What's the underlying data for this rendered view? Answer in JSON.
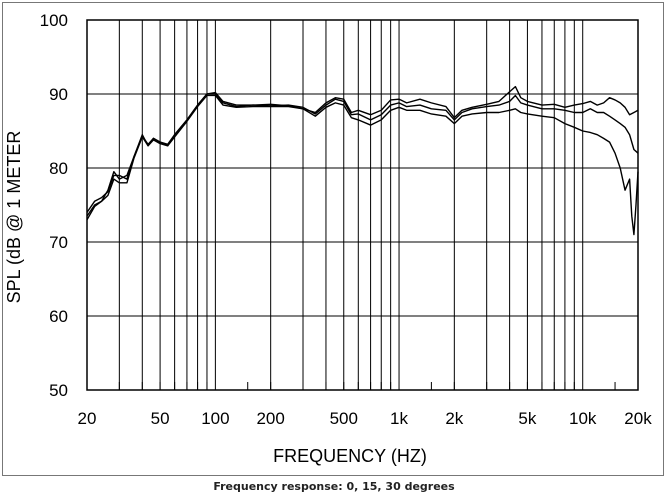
{
  "caption": "Frequency response: 0, 15, 30 degrees",
  "chart_data": {
    "type": "line",
    "title": "",
    "xlabel": "FREQUENCY  (HZ)",
    "ylabel": "SPL (dB @ 1 METER",
    "x_scale": "log",
    "xlim": [
      20,
      20000
    ],
    "ylim": [
      50,
      100
    ],
    "grid": true,
    "x_ticks": [
      {
        "value": 20,
        "label": "20"
      },
      {
        "value": 50,
        "label": "50"
      },
      {
        "value": 100,
        "label": "100"
      },
      {
        "value": 200,
        "label": "200"
      },
      {
        "value": 500,
        "label": "500"
      },
      {
        "value": 1000,
        "label": "1k"
      },
      {
        "value": 2000,
        "label": "2k"
      },
      {
        "value": 5000,
        "label": "5k"
      },
      {
        "value": 10000,
        "label": "10k"
      },
      {
        "value": 20000,
        "label": "20k"
      }
    ],
    "y_ticks": [
      {
        "value": 50,
        "label": "50"
      },
      {
        "value": 60,
        "label": "60"
      },
      {
        "value": 70,
        "label": "70"
      },
      {
        "value": 80,
        "label": "80"
      },
      {
        "value": 90,
        "label": "90"
      },
      {
        "value": 100,
        "label": "100"
      }
    ],
    "x_gridlines": [
      20,
      30,
      40,
      50,
      60,
      70,
      80,
      90,
      100,
      200,
      300,
      400,
      500,
      600,
      700,
      800,
      900,
      1000,
      2000,
      3000,
      4000,
      5000,
      6000,
      7000,
      8000,
      9000,
      10000,
      20000
    ],
    "y_gridlines": [
      50,
      60,
      70,
      80,
      90,
      100
    ],
    "series": [
      {
        "color": "#000000",
        "points": [
          [
            20,
            73.5
          ],
          [
            22,
            75
          ],
          [
            24,
            75.5
          ],
          [
            26,
            77
          ],
          [
            28,
            79.5
          ],
          [
            30,
            78.5
          ],
          [
            33,
            79
          ],
          [
            36,
            81.5
          ],
          [
            40,
            84.5
          ],
          [
            43,
            83
          ],
          [
            46,
            84
          ],
          [
            50,
            83.5
          ],
          [
            55,
            83
          ],
          [
            60,
            84.5
          ],
          [
            70,
            86.5
          ],
          [
            80,
            88.5
          ],
          [
            90,
            90
          ],
          [
            100,
            90.2
          ],
          [
            110,
            89
          ],
          [
            130,
            88.5
          ],
          [
            160,
            88.5
          ],
          [
            200,
            88.6
          ],
          [
            250,
            88.4
          ],
          [
            300,
            88
          ],
          [
            350,
            87.5
          ],
          [
            400,
            88.8
          ],
          [
            450,
            89.5
          ],
          [
            500,
            89.3
          ],
          [
            550,
            87.5
          ],
          [
            600,
            87.8
          ],
          [
            700,
            87.2
          ],
          [
            800,
            87.8
          ],
          [
            900,
            89.2
          ],
          [
            1000,
            89.3
          ],
          [
            1100,
            88.8
          ],
          [
            1300,
            89.3
          ],
          [
            1500,
            88.8
          ],
          [
            1800,
            88.3
          ],
          [
            2000,
            86.8
          ],
          [
            2200,
            87.8
          ],
          [
            2500,
            88.2
          ],
          [
            3000,
            88.6
          ],
          [
            3500,
            89
          ],
          [
            4000,
            90.3
          ],
          [
            4300,
            91
          ],
          [
            4600,
            89.5
          ],
          [
            5000,
            89
          ],
          [
            6000,
            88.5
          ],
          [
            7000,
            88.6
          ],
          [
            8000,
            88.2
          ],
          [
            9000,
            88.5
          ],
          [
            10000,
            88.7
          ],
          [
            11000,
            89
          ],
          [
            12000,
            88.5
          ],
          [
            13000,
            88.8
          ],
          [
            14000,
            89.5
          ],
          [
            15000,
            89.2
          ],
          [
            16000,
            88.8
          ],
          [
            17000,
            88.2
          ],
          [
            18000,
            87.2
          ],
          [
            19000,
            87.5
          ],
          [
            20000,
            87.8
          ]
        ]
      },
      {
        "color": "#000000",
        "points": [
          [
            20,
            74
          ],
          [
            22,
            75.5
          ],
          [
            24,
            76
          ],
          [
            26,
            76.8
          ],
          [
            28,
            79
          ],
          [
            30,
            79
          ],
          [
            33,
            78.5
          ],
          [
            36,
            81.5
          ],
          [
            40,
            84.3
          ],
          [
            43,
            83.2
          ],
          [
            46,
            84
          ],
          [
            50,
            83.5
          ],
          [
            55,
            83.2
          ],
          [
            60,
            84.5
          ],
          [
            70,
            86.5
          ],
          [
            80,
            88.5
          ],
          [
            90,
            90
          ],
          [
            100,
            90
          ],
          [
            110,
            88.8
          ],
          [
            130,
            88.3
          ],
          [
            160,
            88.5
          ],
          [
            200,
            88.4
          ],
          [
            250,
            88.5
          ],
          [
            300,
            88.2
          ],
          [
            350,
            87.3
          ],
          [
            400,
            88.5
          ],
          [
            450,
            89.3
          ],
          [
            500,
            89
          ],
          [
            550,
            87.2
          ],
          [
            600,
            87.3
          ],
          [
            700,
            86.5
          ],
          [
            800,
            87.2
          ],
          [
            900,
            88.5
          ],
          [
            1000,
            88.8
          ],
          [
            1100,
            88.3
          ],
          [
            1300,
            88.5
          ],
          [
            1500,
            88
          ],
          [
            1800,
            87.8
          ],
          [
            2000,
            86.5
          ],
          [
            2200,
            87.5
          ],
          [
            2500,
            88
          ],
          [
            3000,
            88.3
          ],
          [
            3500,
            88.5
          ],
          [
            4000,
            89
          ],
          [
            4300,
            89.8
          ],
          [
            4600,
            88.8
          ],
          [
            5000,
            88.5
          ],
          [
            6000,
            88
          ],
          [
            7000,
            88
          ],
          [
            8000,
            87.8
          ],
          [
            9000,
            87.5
          ],
          [
            10000,
            87.5
          ],
          [
            11000,
            88
          ],
          [
            12000,
            87.5
          ],
          [
            13000,
            87.5
          ],
          [
            14000,
            87
          ],
          [
            15000,
            86.5
          ],
          [
            16000,
            86
          ],
          [
            17000,
            85.5
          ],
          [
            18000,
            84.5
          ],
          [
            19000,
            82.5
          ],
          [
            20000,
            82
          ]
        ]
      },
      {
        "color": "#000000",
        "points": [
          [
            20,
            73
          ],
          [
            22,
            74.8
          ],
          [
            24,
            75.5
          ],
          [
            26,
            76.3
          ],
          [
            28,
            78.5
          ],
          [
            30,
            78
          ],
          [
            33,
            78
          ],
          [
            36,
            81.3
          ],
          [
            40,
            84.2
          ],
          [
            43,
            83
          ],
          [
            46,
            83.8
          ],
          [
            50,
            83.3
          ],
          [
            55,
            83
          ],
          [
            60,
            84.2
          ],
          [
            70,
            86.3
          ],
          [
            80,
            88.3
          ],
          [
            90,
            89.8
          ],
          [
            100,
            89.8
          ],
          [
            110,
            88.5
          ],
          [
            130,
            88.2
          ],
          [
            160,
            88.3
          ],
          [
            200,
            88.3
          ],
          [
            250,
            88.3
          ],
          [
            300,
            88
          ],
          [
            350,
            87
          ],
          [
            400,
            88.2
          ],
          [
            450,
            88.8
          ],
          [
            500,
            88.5
          ],
          [
            550,
            86.8
          ],
          [
            600,
            86.5
          ],
          [
            700,
            85.8
          ],
          [
            800,
            86.5
          ],
          [
            900,
            87.8
          ],
          [
            1000,
            88.2
          ],
          [
            1100,
            87.8
          ],
          [
            1300,
            87.8
          ],
          [
            1500,
            87.3
          ],
          [
            1800,
            87
          ],
          [
            2000,
            86
          ],
          [
            2200,
            87
          ],
          [
            2500,
            87.3
          ],
          [
            3000,
            87.5
          ],
          [
            3500,
            87.5
          ],
          [
            4000,
            87.8
          ],
          [
            4300,
            88
          ],
          [
            4600,
            87.5
          ],
          [
            5000,
            87.3
          ],
          [
            6000,
            87
          ],
          [
            7000,
            86.8
          ],
          [
            8000,
            86
          ],
          [
            9000,
            85.5
          ],
          [
            10000,
            85
          ],
          [
            11000,
            84.8
          ],
          [
            12000,
            84.5
          ],
          [
            13000,
            84
          ],
          [
            14000,
            83.5
          ],
          [
            15000,
            82
          ],
          [
            16000,
            80
          ],
          [
            17000,
            77
          ],
          [
            18000,
            78.5
          ],
          [
            18500,
            73.5
          ],
          [
            19000,
            71
          ],
          [
            19500,
            75
          ],
          [
            20000,
            79.5
          ]
        ]
      }
    ]
  }
}
